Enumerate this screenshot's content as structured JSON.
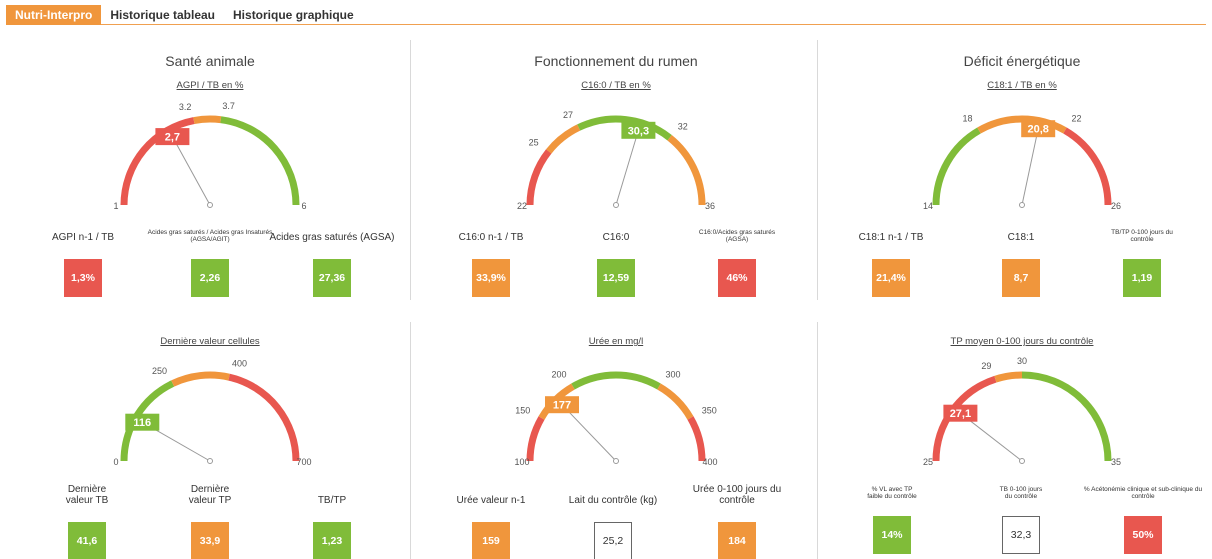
{
  "tabs": [
    {
      "label": "Nutri-Interpro",
      "active": true
    },
    {
      "label": "Historique tableau",
      "active": false
    },
    {
      "label": "Historique graphique",
      "active": false
    }
  ],
  "colors": {
    "red": "#e8574f",
    "orange": "#f0963c",
    "green": "#80bc39"
  },
  "panels": [
    {
      "title": "Santé animale",
      "subtitle": "AGPI / TB en %",
      "gauge": {
        "min": 1,
        "max": 6,
        "min_label": "1",
        "max_label": "6",
        "value": 2.7,
        "value_label": "2,7",
        "value_color": "red",
        "zones": [
          {
            "from": 1,
            "to": 3.2,
            "color": "red"
          },
          {
            "from": 3.2,
            "to": 3.7,
            "color": "orange"
          },
          {
            "from": 3.7,
            "to": 6,
            "color": "green"
          }
        ],
        "ticks": [
          {
            "value": 3.2,
            "label": "3.2"
          },
          {
            "value": 3.7,
            "label": "3.7"
          }
        ]
      },
      "indicators": [
        {
          "label": "AGPI n-1 / TB",
          "value": "1,3%",
          "color": "red",
          "small": false
        },
        {
          "label": "Acides gras saturés / Acides gras Insaturés (AGSA/AGIT)",
          "value": "2,26",
          "color": "green",
          "small": true
        },
        {
          "label": "Acides gras saturés (AGSA)",
          "value": "27,36",
          "color": "green",
          "small": false
        }
      ]
    },
    {
      "title": "Fonctionnement du rumen",
      "subtitle": "C16:0 / TB en %",
      "gauge": {
        "min": 22,
        "max": 36,
        "min_label": "22",
        "max_label": "36",
        "value": 30.3,
        "value_label": "30,3",
        "value_color": "green",
        "zones": [
          {
            "from": 22,
            "to": 25,
            "color": "red"
          },
          {
            "from": 25,
            "to": 27,
            "color": "orange"
          },
          {
            "from": 27,
            "to": 32,
            "color": "green"
          },
          {
            "from": 32,
            "to": 36,
            "color": "orange"
          }
        ],
        "ticks": [
          {
            "value": 25,
            "label": "25"
          },
          {
            "value": 27,
            "label": "27"
          },
          {
            "value": 32,
            "label": "32"
          }
        ]
      },
      "indicators": [
        {
          "label": "C16:0 n-1 / TB",
          "value": "33,9%",
          "color": "orange",
          "small": false
        },
        {
          "label": "C16:0",
          "value": "12,59",
          "color": "green",
          "small": false
        },
        {
          "label": "C16:0/Acides gras saturés (AGSA)",
          "value": "46%",
          "color": "red",
          "small": true
        }
      ]
    },
    {
      "title": "Déficit énergétique",
      "subtitle": "C18:1 / TB en %",
      "gauge": {
        "min": 14,
        "max": 26,
        "min_label": "14",
        "max_label": "26",
        "value": 20.8,
        "value_label": "20,8",
        "value_color": "orange",
        "zones": [
          {
            "from": 14,
            "to": 18,
            "color": "green"
          },
          {
            "from": 18,
            "to": 22,
            "color": "orange"
          },
          {
            "from": 22,
            "to": 26,
            "color": "red"
          }
        ],
        "ticks": [
          {
            "value": 18,
            "label": "18"
          },
          {
            "value": 22,
            "label": "22"
          }
        ]
      },
      "indicators": [
        {
          "label": "C18:1 n-1 / TB",
          "value": "21,4%",
          "color": "orange",
          "small": false
        },
        {
          "label": "C18:1",
          "value": "8,7",
          "color": "orange",
          "small": false
        },
        {
          "label": "TB/TP 0-100 jours du contrôle",
          "value": "1,19",
          "color": "green",
          "small": true
        }
      ]
    },
    {
      "title": "",
      "subtitle": "Dernière valeur cellules",
      "gauge": {
        "min": 0,
        "max": 700,
        "min_label": "0",
        "max_label": "700",
        "value": 116,
        "value_label": "116",
        "value_color": "green",
        "zones": [
          {
            "from": 0,
            "to": 250,
            "color": "green"
          },
          {
            "from": 250,
            "to": 400,
            "color": "orange"
          },
          {
            "from": 400,
            "to": 700,
            "color": "red"
          }
        ],
        "ticks": [
          {
            "value": 250,
            "label": "250"
          },
          {
            "value": 400,
            "label": "400"
          }
        ]
      },
      "indicators": [
        {
          "label": "Dernière valeur TB",
          "value": "41,6",
          "color": "green",
          "small": false
        },
        {
          "label": "Dernière valeur TP",
          "value": "33,9",
          "color": "orange",
          "small": false
        },
        {
          "label": "TB/TP",
          "value": "1,23",
          "color": "green",
          "small": false
        }
      ]
    },
    {
      "title": "",
      "subtitle": "Urée en mg/l",
      "gauge": {
        "min": 100,
        "max": 400,
        "min_label": "100",
        "max_label": "400",
        "value": 177,
        "value_label": "177",
        "value_color": "orange",
        "zones": [
          {
            "from": 100,
            "to": 150,
            "color": "red"
          },
          {
            "from": 150,
            "to": 200,
            "color": "orange"
          },
          {
            "from": 200,
            "to": 300,
            "color": "green"
          },
          {
            "from": 300,
            "to": 350,
            "color": "orange"
          },
          {
            "from": 350,
            "to": 400,
            "color": "red"
          }
        ],
        "ticks": [
          {
            "value": 150,
            "label": "150"
          },
          {
            "value": 200,
            "label": "200"
          },
          {
            "value": 300,
            "label": "300"
          },
          {
            "value": 350,
            "label": "350"
          }
        ]
      },
      "indicators": [
        {
          "label": "Urée valeur n-1",
          "value": "159",
          "color": "orange",
          "small": false
        },
        {
          "label": "Lait du contrôle (kg)",
          "value": "25,2",
          "color": "white",
          "small": false
        },
        {
          "label": "Urée 0-100 jours du contrôle",
          "value": "184",
          "color": "orange",
          "small": false
        }
      ]
    },
    {
      "title": "",
      "subtitle": "TP moyen 0-100 jours du contrôle",
      "gauge": {
        "min": 25,
        "max": 35,
        "min_label": "25",
        "max_label": "35",
        "value": 27.1,
        "value_label": "27,1",
        "value_color": "red",
        "zones": [
          {
            "from": 25,
            "to": 29,
            "color": "red"
          },
          {
            "from": 29,
            "to": 30,
            "color": "orange"
          },
          {
            "from": 30,
            "to": 35,
            "color": "green"
          }
        ],
        "ticks": [
          {
            "value": 29,
            "label": "29"
          },
          {
            "value": 30,
            "label": "30"
          }
        ]
      },
      "indicators": [
        {
          "label": "% VL avec TP faible du contrôle",
          "value": "14%",
          "color": "green",
          "small": true
        },
        {
          "label": "TB 0-100 jours du contrôle",
          "value": "32,3",
          "color": "white",
          "small": true
        },
        {
          "label": "% Acétonémie clinique et sub-clinique du contrôle",
          "value": "50%",
          "color": "red",
          "small": true
        }
      ]
    }
  ]
}
